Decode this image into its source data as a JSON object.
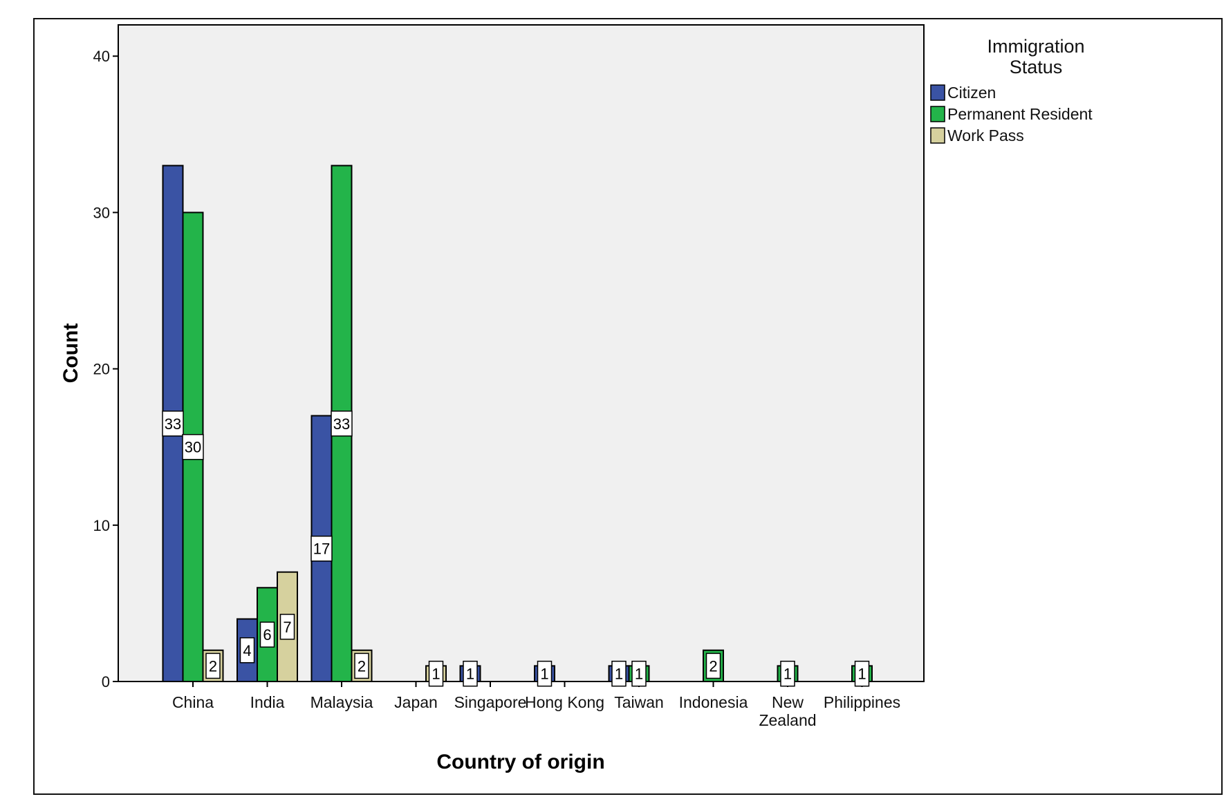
{
  "chart_data": {
    "type": "bar",
    "xlabel": "Country of origin",
    "ylabel": "Count",
    "ylim": [
      0,
      42
    ],
    "yticks": [
      0,
      10,
      20,
      30,
      40
    ],
    "grid": false,
    "legend": {
      "title": "Immigration Status",
      "placement": "right"
    },
    "categories": [
      "China",
      "India",
      "Malaysia",
      "Japan",
      "Singapore",
      "Hong Kong",
      "Taiwan",
      "Indonesia",
      "New Zealand",
      "Philippines"
    ],
    "series": [
      {
        "name": "Citizen",
        "color": "#3a53a4",
        "values": [
          33,
          4,
          17,
          0,
          1,
          1,
          1,
          0,
          0,
          0
        ]
      },
      {
        "name": "Permanent Resident",
        "color": "#23b44a",
        "values": [
          30,
          6,
          33,
          0,
          0,
          0,
          1,
          2,
          1,
          1
        ]
      },
      {
        "name": "Work Pass",
        "color": "#d6d19e",
        "values": [
          2,
          7,
          2,
          1,
          0,
          0,
          0,
          0,
          0,
          0
        ]
      }
    ]
  }
}
